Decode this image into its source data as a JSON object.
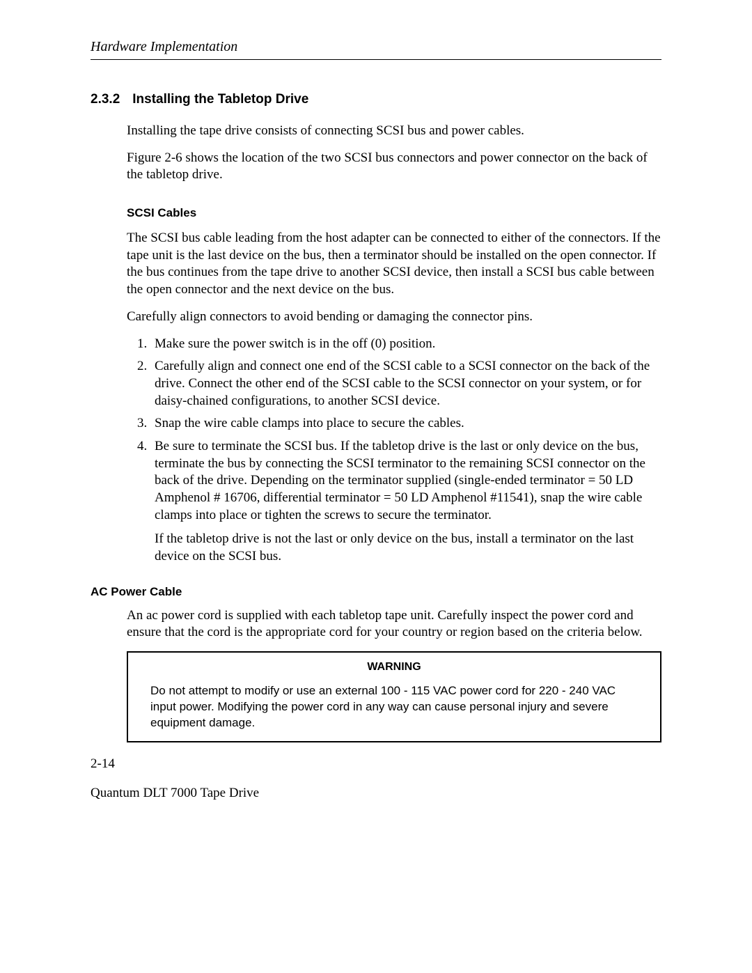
{
  "runningHead": "Hardware Implementation",
  "section": {
    "number": "2.3.2",
    "title": "Installing the Tabletop Drive"
  },
  "intro": {
    "p1": "Installing the tape drive consists of connecting SCSI bus and power cables.",
    "p2": "Figure 2-6 shows the location of the two SCSI bus connectors and power connector on the back of the tabletop drive."
  },
  "scsi": {
    "heading": "SCSI Cables",
    "p1": "The SCSI bus cable leading from the host adapter can be connected to either of the connectors. If the tape unit is the last device on the bus, then a terminator should be installed on the open connector. If the bus continues from the tape drive to another SCSI device, then install a SCSI bus cable between the open connector and the next device on the bus.",
    "p2": "Carefully align connectors to avoid bending or damaging the connector pins.",
    "steps": {
      "s1": "Make sure the power switch is in the off (0) position.",
      "s2": "Carefully align and connect one end of the SCSI cable to a SCSI connector on the back of the drive. Connect the other end of the SCSI cable to the SCSI connector on your system, or for daisy-chained configurations, to another SCSI device.",
      "s3": "Snap the wire cable clamps into place to secure the cables.",
      "s4": "Be sure to terminate the SCSI bus.  If the tabletop drive is the last or only device on the bus, terminate the bus by connecting the SCSI terminator to the remaining SCSI connector on the back of the drive.  Depending on the terminator supplied (single-ended terminator = 50 LD Amphenol # 16706, differential terminator = 50 LD Amphenol #11541), snap the wire cable clamps into place or tighten the screws to secure the terminator.",
      "s4b": "If the tabletop drive is not the last or only device on the bus, install a terminator on the last device on the SCSI bus."
    }
  },
  "ac": {
    "heading": "AC Power Cable",
    "p1": "An ac power cord is supplied with each tabletop tape unit. Carefully inspect the power cord and ensure that the cord is the appropriate cord for your country or region based on the criteria below."
  },
  "warning": {
    "title": "WARNING",
    "body": "Do not attempt to modify or use an external 100 - 115 VAC power cord for 220 - 240 VAC input power. Modifying the power cord in any way can cause personal injury and severe equipment damage."
  },
  "footer": {
    "pageNum": "2-14",
    "center": "Quantum DLT 7000 Tape Drive"
  }
}
